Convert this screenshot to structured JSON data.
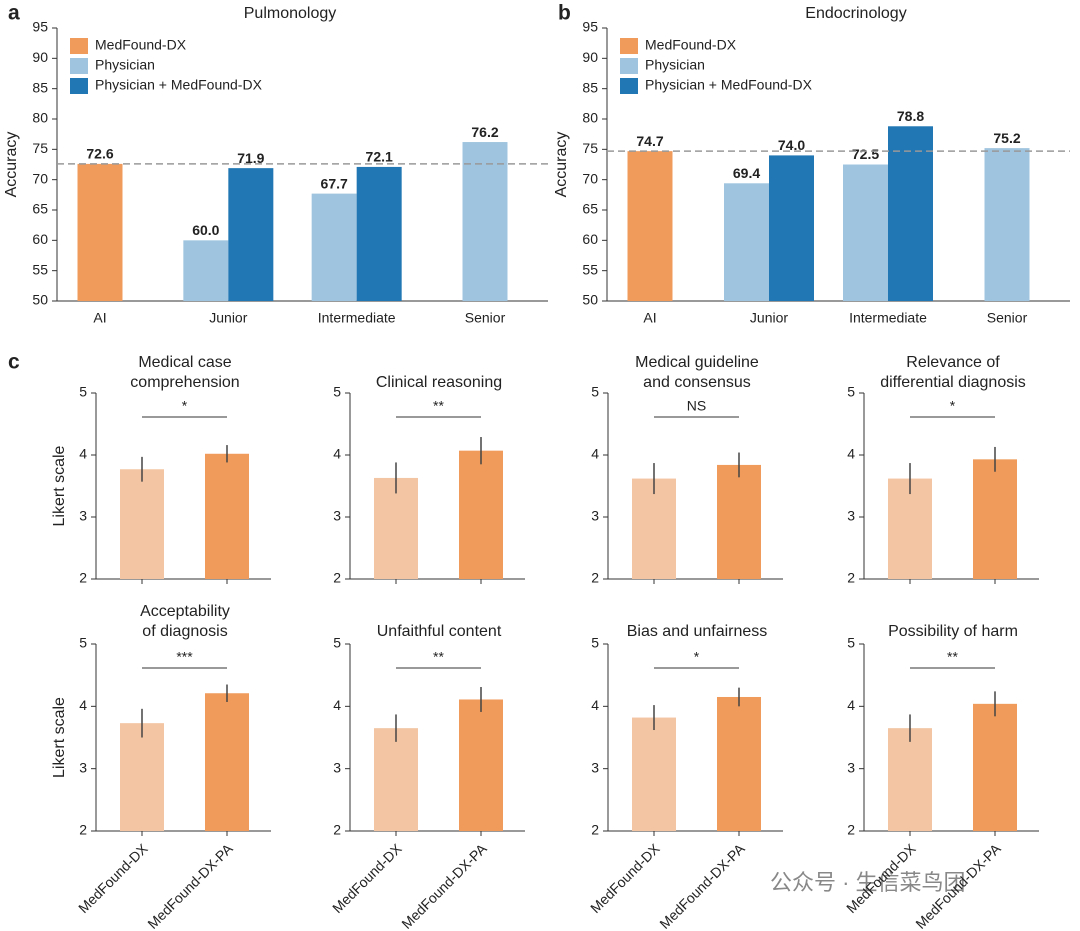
{
  "chart_data": [
    {
      "type": "bar",
      "panel_label": "a",
      "title": "Pulmonology",
      "y_label": "Accuracy",
      "categories": [
        "AI",
        "Junior",
        "Intermediate",
        "Senior"
      ],
      "series": [
        {
          "name": "MedFound-DX",
          "color": "#f09b5b",
          "values": [
            72.6,
            null,
            null,
            null
          ],
          "value_labels": [
            "72.6",
            null,
            null,
            null
          ]
        },
        {
          "name": "Physician",
          "color": "#9fc4df",
          "values": [
            null,
            60.0,
            67.7,
            76.2
          ],
          "value_labels": [
            null,
            "60.0",
            "67.7",
            "76.2"
          ]
        },
        {
          "name": "Physician + MedFound-DX",
          "color": "#2077b4",
          "values": [
            null,
            71.9,
            72.1,
            null
          ],
          "value_labels": [
            null,
            "71.9",
            "72.1",
            null
          ]
        }
      ],
      "reference_line": 72.6,
      "ylim": [
        50,
        95
      ],
      "yticks": [
        50,
        55,
        60,
        65,
        70,
        75,
        80,
        85,
        90,
        95
      ],
      "legend": "top-left"
    },
    {
      "type": "bar",
      "panel_label": "b",
      "title": "Endocrinology",
      "y_label": "Accuracy",
      "categories": [
        "AI",
        "Junior",
        "Intermediate",
        "Senior"
      ],
      "series": [
        {
          "name": "MedFound-DX",
          "color": "#f09b5b",
          "values": [
            74.7,
            null,
            null,
            null
          ],
          "value_labels": [
            "74.7",
            null,
            null,
            null
          ]
        },
        {
          "name": "Physician",
          "color": "#9fc4df",
          "values": [
            null,
            69.4,
            72.5,
            75.2
          ],
          "value_labels": [
            null,
            "69.4",
            "72.5",
            "75.2"
          ]
        },
        {
          "name": "Physician + MedFound-DX",
          "color": "#2077b4",
          "values": [
            null,
            74.0,
            78.8,
            null
          ],
          "value_labels": [
            null,
            "74.0",
            "78.8",
            null
          ]
        }
      ],
      "reference_line": 74.7,
      "ylim": [
        50,
        95
      ],
      "yticks": [
        50,
        55,
        60,
        65,
        70,
        75,
        80,
        85,
        90,
        95
      ],
      "legend": "top-left"
    },
    {
      "type": "bar",
      "panel_label": "c",
      "title": [
        "Medical case",
        "comprehension"
      ],
      "y_label": "Likert scale",
      "categories": [
        null,
        null
      ],
      "values": [
        3.77,
        4.02
      ],
      "errors": [
        0.2,
        0.14
      ],
      "colors": [
        "#f3c5a2",
        "#f09b5b"
      ],
      "significance": "*",
      "ylim": [
        2,
        5
      ],
      "yticks": [
        2,
        3,
        4,
        5
      ]
    },
    {
      "type": "bar",
      "title": [
        "Clinical reasoning"
      ],
      "categories": [
        null,
        null
      ],
      "values": [
        3.63,
        4.07
      ],
      "errors": [
        0.25,
        0.22
      ],
      "colors": [
        "#f3c5a2",
        "#f09b5b"
      ],
      "significance": "**",
      "ylim": [
        2,
        5
      ],
      "yticks": [
        2,
        3,
        4,
        5
      ]
    },
    {
      "type": "bar",
      "title": [
        "Medical guideline",
        "and consensus"
      ],
      "categories": [
        null,
        null
      ],
      "values": [
        3.62,
        3.84
      ],
      "errors": [
        0.25,
        0.2
      ],
      "colors": [
        "#f3c5a2",
        "#f09b5b"
      ],
      "significance": "NS",
      "ylim": [
        2,
        5
      ],
      "yticks": [
        2,
        3,
        4,
        5
      ]
    },
    {
      "type": "bar",
      "title": [
        "Relevance of",
        "differential diagnosis"
      ],
      "categories": [
        null,
        null
      ],
      "values": [
        3.62,
        3.93
      ],
      "errors": [
        0.25,
        0.2
      ],
      "colors": [
        "#f3c5a2",
        "#f09b5b"
      ],
      "significance": "*",
      "ylim": [
        2,
        5
      ],
      "yticks": [
        2,
        3,
        4,
        5
      ]
    },
    {
      "type": "bar",
      "title": [
        "Acceptability",
        "of diagnosis"
      ],
      "y_label": "Likert scale",
      "categories": [
        "MedFound-DX",
        "MedFound-DX-PA"
      ],
      "values": [
        3.73,
        4.21
      ],
      "errors": [
        0.23,
        0.14
      ],
      "colors": [
        "#f3c5a2",
        "#f09b5b"
      ],
      "significance": "***",
      "ylim": [
        2,
        5
      ],
      "yticks": [
        2,
        3,
        4,
        5
      ]
    },
    {
      "type": "bar",
      "title": [
        "Unfaithful content"
      ],
      "categories": [
        "MedFound-DX",
        "MedFound-DX-PA"
      ],
      "values": [
        3.65,
        4.11
      ],
      "errors": [
        0.22,
        0.2
      ],
      "colors": [
        "#f3c5a2",
        "#f09b5b"
      ],
      "significance": "**",
      "ylim": [
        2,
        5
      ],
      "yticks": [
        2,
        3,
        4,
        5
      ]
    },
    {
      "type": "bar",
      "title": [
        "Bias and unfairness"
      ],
      "categories": [
        "MedFound-DX",
        "MedFound-DX-PA"
      ],
      "values": [
        3.82,
        4.15
      ],
      "errors": [
        0.2,
        0.15
      ],
      "colors": [
        "#f3c5a2",
        "#f09b5b"
      ],
      "significance": "*",
      "ylim": [
        2,
        5
      ],
      "yticks": [
        2,
        3,
        4,
        5
      ]
    },
    {
      "type": "bar",
      "title": [
        "Possibility of harm"
      ],
      "categories": [
        "MedFound-DX",
        "MedFound-DX-PA"
      ],
      "values": [
        3.65,
        4.04
      ],
      "errors": [
        0.22,
        0.2
      ],
      "colors": [
        "#f3c5a2",
        "#f09b5b"
      ],
      "significance": "**",
      "ylim": [
        2,
        5
      ],
      "yticks": [
        2,
        3,
        4,
        5
      ]
    }
  ],
  "watermark": "公众号 · 生信菜鸟团"
}
